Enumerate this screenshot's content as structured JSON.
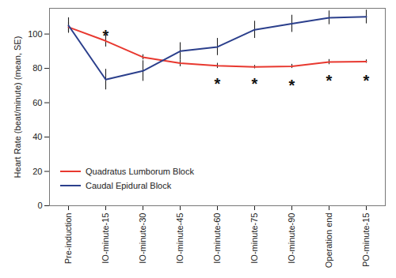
{
  "chart_data": {
    "type": "line",
    "y_label": "Heart Rate (beat/minute) (mean, SE)",
    "categories": [
      "Pre-induction",
      "IO-minute-15",
      "IO-minute-30",
      "IO-minute-45",
      "IO-minute-60",
      "IO-minute-75",
      "IO-minute-90",
      "Operation end",
      "PO-minute-15"
    ],
    "series": [
      {
        "name": "Quadratus Lumborum Block",
        "color": "#e8382f",
        "marker": "none",
        "line_style": "solid",
        "values": [
          104,
          96,
          86.5,
          83,
          81.5,
          80.8,
          81.2,
          83.7,
          84
        ],
        "se": [
          3,
          3.5,
          1.5,
          2,
          1.5,
          1,
          1.2,
          1.5,
          1
        ]
      },
      {
        "name": "Caudal Epidural Block",
        "color": "#2b3f8c",
        "marker": "none",
        "line_style": "solid",
        "values": [
          105,
          73.5,
          78.5,
          90,
          92.5,
          102.5,
          106,
          109.5,
          110
        ],
        "se": [
          4.5,
          6,
          6,
          5,
          5,
          5,
          5,
          4,
          4
        ]
      }
    ],
    "annotations": [
      {
        "category": "IO-minute-15",
        "text": "*",
        "y": 101
      },
      {
        "category": "IO-minute-60",
        "text": "*",
        "y": 73
      },
      {
        "category": "IO-minute-75",
        "text": "*",
        "y": 73
      },
      {
        "category": "IO-minute-90",
        "text": "*",
        "y": 72
      },
      {
        "category": "Operation end",
        "text": "*",
        "y": 75
      },
      {
        "category": "PO-minute-15",
        "text": "*",
        "y": 75
      }
    ],
    "ylim": [
      0,
      115
    ],
    "yticks": [
      0,
      20,
      40,
      60,
      80,
      100
    ],
    "grid": false,
    "legend": "lower left"
  }
}
